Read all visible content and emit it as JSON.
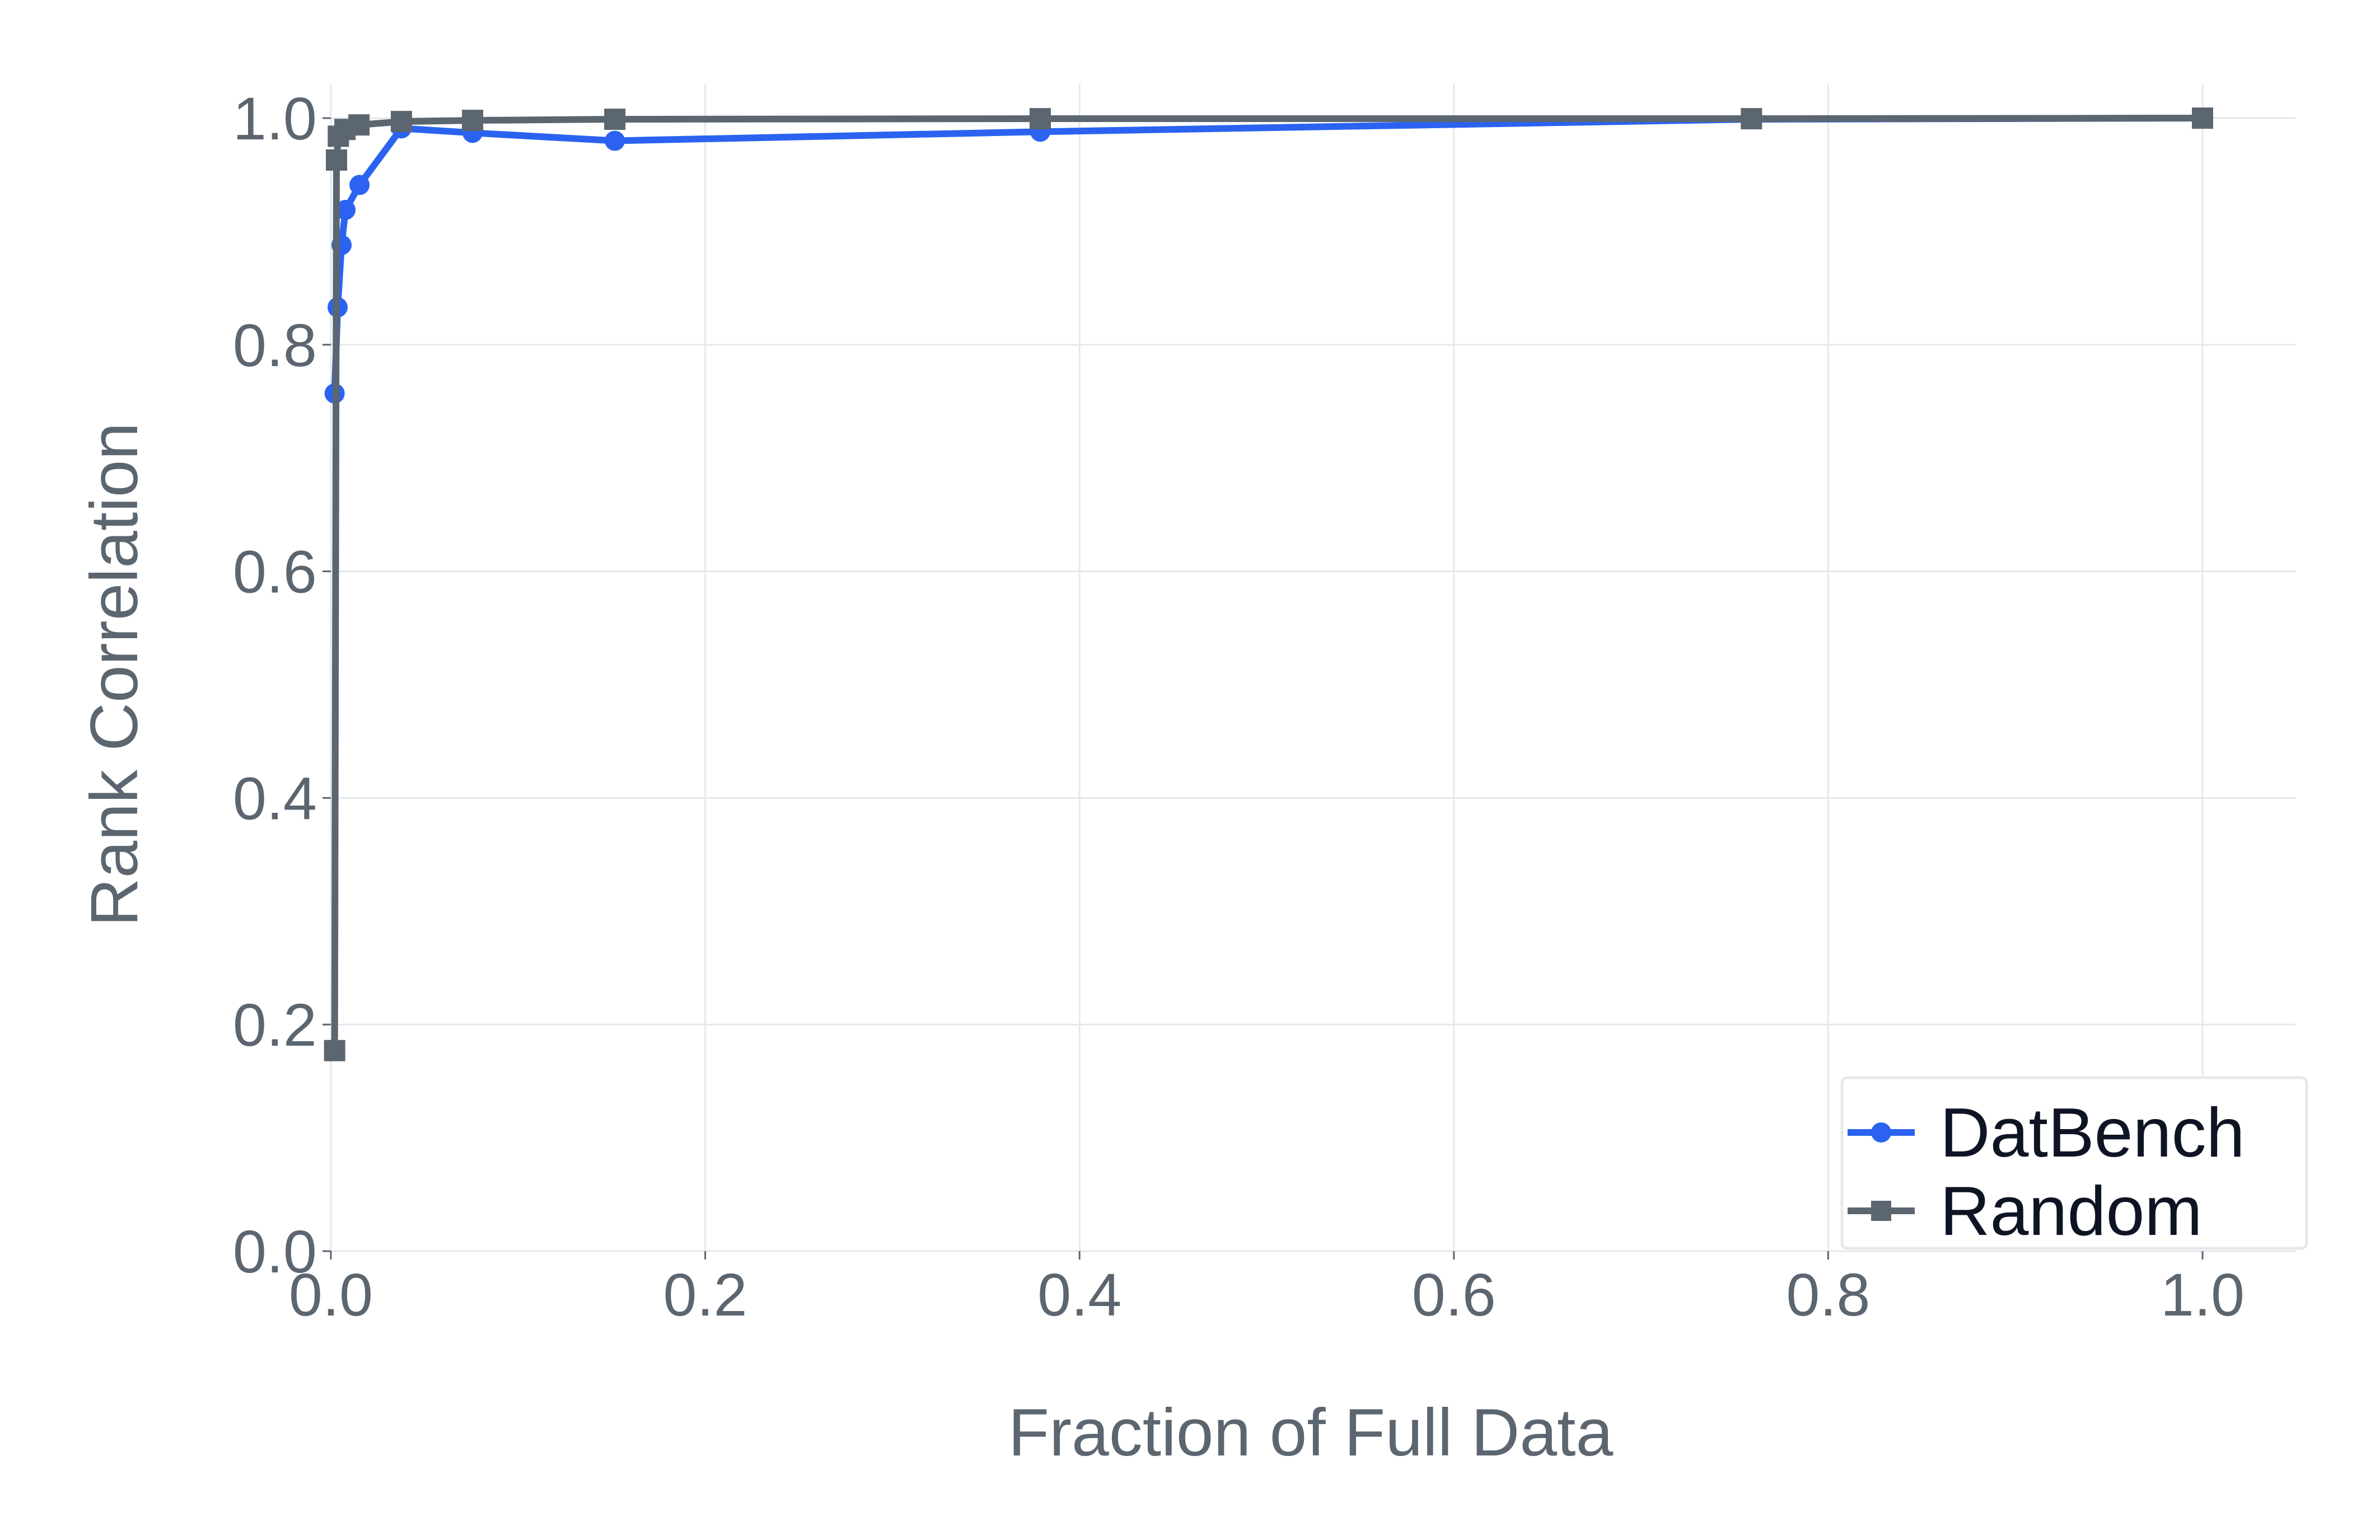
{
  "chart_data": {
    "type": "line",
    "title": "",
    "xlabel": "Fraction of Full Data",
    "ylabel": "Rank Correlation",
    "xlim": [
      0,
      1.05
    ],
    "ylim": [
      0,
      1.02
    ],
    "grid": true,
    "legend_position": "lower right",
    "x_ticks": [
      0.0,
      0.2,
      0.4,
      0.6,
      0.8,
      1.0
    ],
    "x_tick_labels": [
      "0.0",
      "0.2",
      "0.4",
      "0.6",
      "0.8",
      "1.0"
    ],
    "y_ticks": [
      0.0,
      0.2,
      0.4,
      0.6,
      0.8,
      1.0
    ],
    "y_tick_labels": [
      "0.0",
      "0.2",
      "0.4",
      "0.6",
      "0.8",
      "1.0"
    ],
    "series": [
      {
        "name": "DatBench",
        "color": "#2b63f0",
        "marker": "circle",
        "x": [
          0.002,
          0.0036,
          0.0057,
          0.0078,
          0.0153,
          0.0377,
          0.0757,
          0.1517,
          0.379,
          0.759,
          1.0
        ],
        "y": [
          0.757,
          0.833,
          0.888,
          0.919,
          0.941,
          0.991,
          0.987,
          0.98,
          0.988,
          0.999,
          1.0
        ]
      },
      {
        "name": "Random",
        "color": "#5c6670",
        "marker": "square",
        "x": [
          0.002,
          0.003,
          0.004,
          0.0075,
          0.015,
          0.0377,
          0.0757,
          0.1517,
          0.379,
          0.759,
          1.0
        ],
        "y": [
          0.177,
          0.963,
          0.984,
          0.99,
          0.994,
          0.997,
          0.998,
          0.999,
          0.9995,
          0.9995,
          1.0
        ]
      }
    ]
  },
  "legend": {
    "items": [
      {
        "label": "DatBench",
        "color": "#2b63f0",
        "marker": "circle"
      },
      {
        "label": "Random",
        "color": "#5c6670",
        "marker": "square"
      }
    ]
  },
  "colors": {
    "grid": "#e5e8ec",
    "axis_text": "#5c6670",
    "legend_text": "#0f1424",
    "legend_border": "#e5e8ec"
  }
}
